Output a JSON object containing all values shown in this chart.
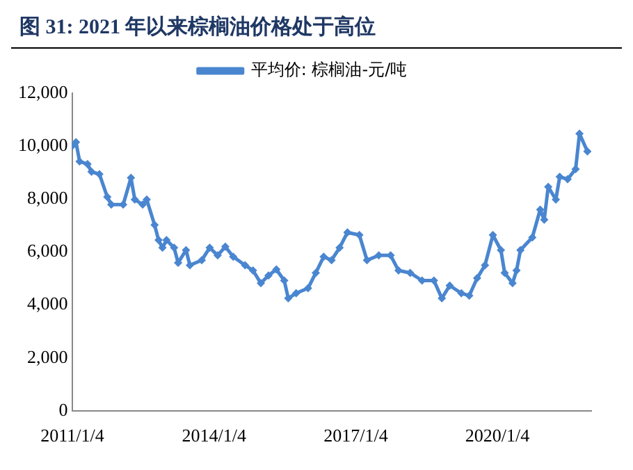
{
  "chart_data": {
    "type": "line",
    "title": "图 31: 2021 年以来棕榈油价格处于高位",
    "x": [
      "2011-01",
      "2011-02",
      "2011-03",
      "2011-05",
      "2011-06",
      "2011-08",
      "2011-10",
      "2011-11",
      "2012-02",
      "2012-04",
      "2012-05",
      "2012-07",
      "2012-08",
      "2012-10",
      "2012-11",
      "2012-12",
      "2013-01",
      "2013-03",
      "2013-04",
      "2013-06",
      "2013-07",
      "2013-10",
      "2013-12",
      "2014-02",
      "2014-04",
      "2014-06",
      "2014-09",
      "2014-11",
      "2015-01",
      "2015-03",
      "2015-05",
      "2015-07",
      "2015-08",
      "2015-10",
      "2016-01",
      "2016-03",
      "2016-05",
      "2016-07",
      "2016-09",
      "2016-11",
      "2017-02",
      "2017-04",
      "2017-07",
      "2017-10",
      "2017-12",
      "2018-03",
      "2018-06",
      "2018-09",
      "2018-11",
      "2019-01",
      "2019-04",
      "2019-06",
      "2019-08",
      "2019-10",
      "2019-12",
      "2020-02",
      "2020-03",
      "2020-05",
      "2020-06",
      "2020-07",
      "2020-10",
      "2020-12",
      "2021-01",
      "2021-02",
      "2021-04",
      "2021-05",
      "2021-07",
      "2021-09",
      "2021-10",
      "2021-12"
    ],
    "series": [
      {
        "name": "平均价: 棕榈油-元/吨",
        "color": "#4a86d0",
        "values": [
          10000,
          10150,
          9420,
          9320,
          9030,
          8940,
          8080,
          7790,
          7790,
          8800,
          7980,
          7790,
          7980,
          7020,
          6450,
          6160,
          6450,
          6160,
          5590,
          6070,
          5500,
          5690,
          6160,
          5870,
          6200,
          5820,
          5500,
          5300,
          4820,
          5110,
          5340,
          4920,
          4250,
          4440,
          4630,
          5210,
          5820,
          5690,
          6160,
          6740,
          6640,
          5690,
          5870,
          5870,
          5300,
          5210,
          4920,
          4920,
          4250,
          4730,
          4440,
          4350,
          5010,
          5500,
          6640,
          6070,
          5210,
          4820,
          5300,
          6070,
          6550,
          7600,
          7220,
          8460,
          7980,
          8840,
          8750,
          9130,
          10470,
          9800
        ]
      }
    ],
    "xlim": [
      "2011-01-01",
      "2021-12-31"
    ],
    "xticks": [
      {
        "value": "2011-01-04",
        "label": "2011/1/4"
      },
      {
        "value": "2014-01-04",
        "label": "2014/1/4"
      },
      {
        "value": "2017-01-04",
        "label": "2017/1/4"
      },
      {
        "value": "2020-01-04",
        "label": "2020/1/4"
      }
    ],
    "ylim": [
      0,
      12000
    ],
    "yticks": [
      {
        "value": 0,
        "label": "0"
      },
      {
        "value": 2000,
        "label": "2,000"
      },
      {
        "value": 4000,
        "label": "4,000"
      },
      {
        "value": 6000,
        "label": "6,000"
      },
      {
        "value": 8000,
        "label": "8,000"
      },
      {
        "value": 10000,
        "label": "10,000"
      },
      {
        "value": 12000,
        "label": "12,000"
      }
    ],
    "legend": "top",
    "grid": false,
    "marker": "diamond",
    "line_style": "solid"
  }
}
